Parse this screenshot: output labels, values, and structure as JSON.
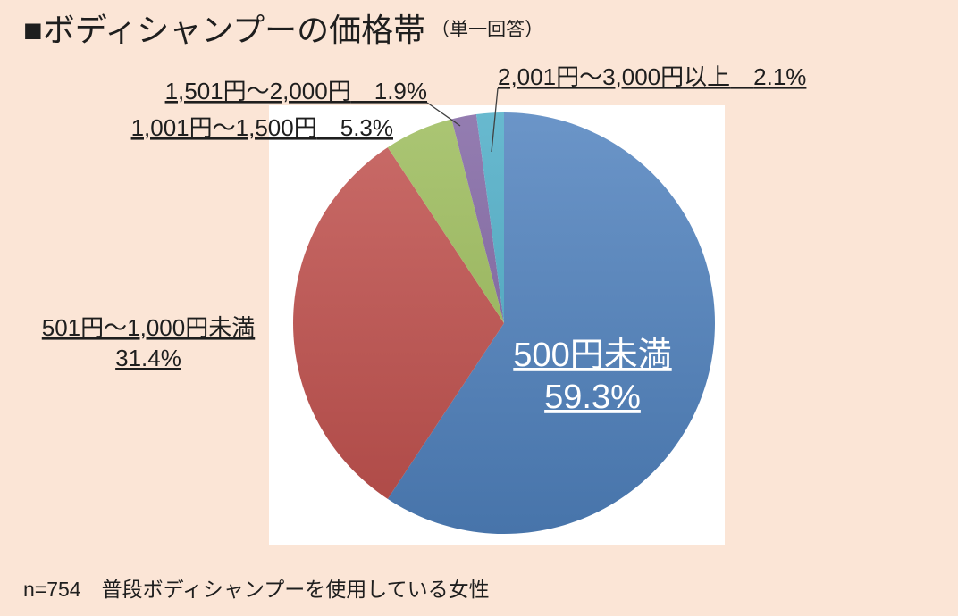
{
  "chart_data": {
    "type": "pie",
    "title": "■ボディシャンプーの価格帯",
    "subtitle": "（単一回答）",
    "note": "n=754　普段ボディシャンプーを使用している女性",
    "slices": [
      {
        "label": "500円未満",
        "value": 59.3,
        "value_label": "59.3%",
        "color": "#4F81BD"
      },
      {
        "label": "501円～1,000円未満",
        "value": 31.4,
        "value_label": "31.4%",
        "color": "#C0504D"
      },
      {
        "label": "1,001円～1,500円",
        "value": 5.3,
        "value_label": "5.3%",
        "color": "#9BBB59"
      },
      {
        "label": "1,501円～2,000円",
        "value": 1.9,
        "value_label": "1.9%",
        "color": "#8064A2"
      },
      {
        "label": "2,001円～3,000円以上",
        "value": 2.1,
        "value_label": "2.1%",
        "color": "#4BACC6"
      }
    ],
    "colors": {
      "background": "#FBE5D6",
      "plot_area": "#FFFFFF"
    }
  }
}
